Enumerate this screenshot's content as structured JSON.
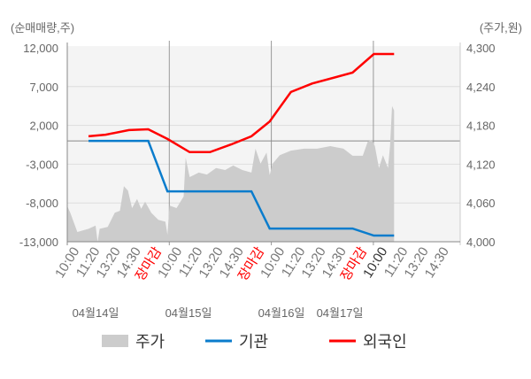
{
  "chart_data": {
    "type": "line",
    "left_axis_title": "(순매매량,주)",
    "right_axis_title": "(주가,원)",
    "left_ylim": [
      -13000,
      12000
    ],
    "right_ylim": [
      4000,
      4300
    ],
    "left_ticks": [
      "12,000",
      "7,000",
      "2,000",
      "-3,000",
      "-8,000",
      "-13,000"
    ],
    "left_tick_values": [
      12000,
      7000,
      2000,
      -3000,
      -8000,
      -13000
    ],
    "right_ticks": [
      "4,300",
      "4,240",
      "4,180",
      "4,120",
      "4,060",
      "4,000"
    ],
    "right_tick_values": [
      4300,
      4240,
      4180,
      4120,
      4060,
      4000
    ],
    "x_tick_labels": [
      {
        "label": "10:00",
        "kind": "time"
      },
      {
        "label": "11:20",
        "kind": "time"
      },
      {
        "label": "13:20",
        "kind": "time"
      },
      {
        "label": "14:30",
        "kind": "time"
      },
      {
        "label": "장마감",
        "kind": "close"
      },
      {
        "label": "10:00",
        "kind": "time"
      },
      {
        "label": "11:20",
        "kind": "time"
      },
      {
        "label": "13:20",
        "kind": "time"
      },
      {
        "label": "14:30",
        "kind": "time"
      },
      {
        "label": "장마감",
        "kind": "close"
      },
      {
        "label": "10:00",
        "kind": "time"
      },
      {
        "label": "11:20",
        "kind": "time"
      },
      {
        "label": "13:20",
        "kind": "time"
      },
      {
        "label": "14:30",
        "kind": "time"
      },
      {
        "label": "장마감",
        "kind": "close"
      },
      {
        "label": "10:00",
        "kind": "current"
      },
      {
        "label": "11:20",
        "kind": "time"
      },
      {
        "label": "13:20",
        "kind": "time"
      },
      {
        "label": "14:30",
        "kind": "time"
      }
    ],
    "dates": [
      {
        "label": "04월14일",
        "day": 0.28
      },
      {
        "label": "04월15일",
        "day": 1.19
      },
      {
        "label": "04월16일",
        "day": 2.1
      },
      {
        "label": "04월17일",
        "day": 2.67
      }
    ],
    "x_range_days": [
      0,
      3.86
    ],
    "series": [
      {
        "name": "주가",
        "axis": "right",
        "type": "area",
        "color": "#cccccc",
        "points": [
          [
            0,
            4055
          ],
          [
            0.03,
            4045
          ],
          [
            0.1,
            4015
          ],
          [
            0.21,
            4020
          ],
          [
            0.28,
            4025
          ],
          [
            0.3,
            4000
          ],
          [
            0.32,
            4020
          ],
          [
            0.4,
            4023
          ],
          [
            0.47,
            4045
          ],
          [
            0.52,
            4048
          ],
          [
            0.56,
            4086
          ],
          [
            0.6,
            4079
          ],
          [
            0.64,
            4052
          ],
          [
            0.69,
            4066
          ],
          [
            0.73,
            4051
          ],
          [
            0.77,
            4062
          ],
          [
            0.83,
            4045
          ],
          [
            0.9,
            4034
          ],
          [
            0.97,
            4031
          ],
          [
            0.99,
            4011
          ],
          [
            1.01,
            4056
          ],
          [
            1.08,
            4052
          ],
          [
            1.15,
            4070
          ],
          [
            1.17,
            4130
          ],
          [
            1.21,
            4100
          ],
          [
            1.3,
            4107
          ],
          [
            1.38,
            4104
          ],
          [
            1.47,
            4114
          ],
          [
            1.56,
            4111
          ],
          [
            1.64,
            4118
          ],
          [
            1.73,
            4111
          ],
          [
            1.82,
            4107
          ],
          [
            1.86,
            4144
          ],
          [
            1.91,
            4121
          ],
          [
            1.97,
            4138
          ],
          [
            2.0,
            4103
          ],
          [
            2.03,
            4121
          ],
          [
            2.1,
            4134
          ],
          [
            2.21,
            4141
          ],
          [
            2.34,
            4144
          ],
          [
            2.47,
            4144
          ],
          [
            2.6,
            4148
          ],
          [
            2.73,
            4144
          ],
          [
            2.82,
            4133
          ],
          [
            2.92,
            4133
          ],
          [
            2.97,
            4155
          ],
          [
            3.01,
            4158
          ],
          [
            3.04,
            4148
          ],
          [
            3.08,
            4114
          ],
          [
            3.12,
            4134
          ],
          [
            3.17,
            4114
          ],
          [
            3.19,
            4148
          ],
          [
            3.21,
            4210
          ],
          [
            3.23,
            4203
          ]
        ]
      },
      {
        "name": "기관",
        "axis": "left",
        "type": "line",
        "color": "#0a7ccc",
        "points": [
          [
            0.21,
            0
          ],
          [
            0.8,
            0
          ],
          [
            0.99,
            -6500
          ],
          [
            1.82,
            -6500
          ],
          [
            2.0,
            -11300
          ],
          [
            2.82,
            -11300
          ],
          [
            3.03,
            -12200
          ],
          [
            3.23,
            -12200
          ]
        ]
      },
      {
        "name": "외국인",
        "axis": "left",
        "type": "line",
        "color": "#ff0000",
        "points": [
          [
            0.21,
            600
          ],
          [
            0.38,
            800
          ],
          [
            0.61,
            1400
          ],
          [
            0.8,
            1500
          ],
          [
            0.99,
            250
          ],
          [
            1.21,
            -1450
          ],
          [
            1.41,
            -1450
          ],
          [
            1.62,
            -450
          ],
          [
            1.82,
            600
          ],
          [
            2.0,
            2500
          ],
          [
            2.21,
            6300
          ],
          [
            2.42,
            7400
          ],
          [
            2.82,
            8800
          ],
          [
            3.03,
            11200
          ],
          [
            3.23,
            11200
          ]
        ]
      }
    ]
  },
  "legend": [
    {
      "label": "주가",
      "color": "#cccccc",
      "shape": "box"
    },
    {
      "label": "기관",
      "color": "#0a7ccc",
      "shape": "line"
    },
    {
      "label": "외국인",
      "color": "#ff0000",
      "shape": "line"
    }
  ]
}
